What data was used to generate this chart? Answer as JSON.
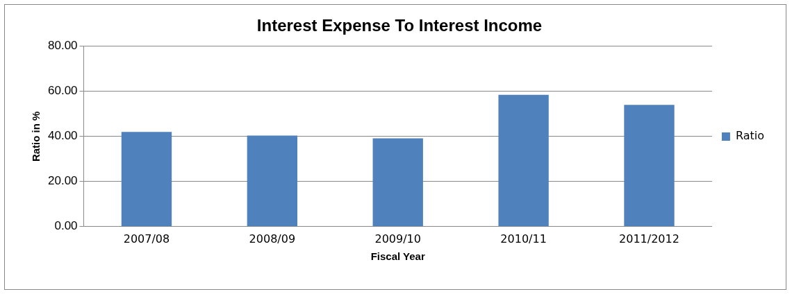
{
  "chart_data": {
    "type": "bar",
    "title": "Interest Expense To Interest Income",
    "xlabel": "Fiscal Year",
    "ylabel": "Ratio in %",
    "categories": [
      "2007/08",
      "2008/09",
      "2009/10",
      "2010/11",
      "2011/2012"
    ],
    "series": [
      {
        "name": "Ratio",
        "color": "#4f81bd",
        "values": [
          42.0,
          40.4,
          39.2,
          58.5,
          54.0
        ]
      }
    ],
    "ylim": [
      0,
      80
    ],
    "yticks": [
      {
        "value": 0,
        "label": "0.00"
      },
      {
        "value": 20,
        "label": "20.00"
      },
      {
        "value": 40,
        "label": "40.00"
      },
      {
        "value": 60,
        "label": "60.00"
      },
      {
        "value": 80,
        "label": "80.00"
      }
    ],
    "grid": "y",
    "legend": "right"
  }
}
